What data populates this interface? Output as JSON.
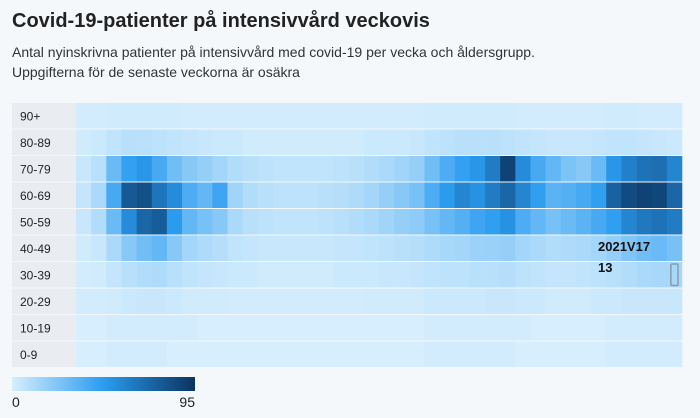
{
  "chart_data": {
    "type": "heatmap",
    "title": "Covid-19-patienter på intensivvård veckovis",
    "subtitle": "Antal nyinskrivna patienter på intensivvård med covid-19 per vecka och åldersgrupp. Uppgifterna för de senaste veckorna är osäkra",
    "x": [
      null,
      null,
      null,
      null,
      null,
      null,
      null,
      null,
      null,
      null,
      null,
      null,
      null,
      null,
      null,
      null,
      null,
      null,
      null,
      null,
      null,
      null,
      null,
      null,
      null,
      null,
      null,
      null,
      null,
      null,
      null,
      null,
      null,
      null,
      null,
      null,
      null,
      null,
      null,
      "2021V17"
    ],
    "categories": [
      "90+",
      "80-89",
      "70-79",
      "60-69",
      "50-59",
      "40-49",
      "30-39",
      "20-29",
      "10-19",
      "0-9"
    ],
    "values": [
      [
        1,
        1,
        2,
        2,
        2,
        2,
        2,
        1,
        1,
        1,
        1,
        1,
        1,
        1,
        1,
        1,
        1,
        1,
        1,
        1,
        1,
        1,
        1,
        2,
        2,
        2,
        2,
        2,
        2,
        1,
        1,
        1,
        1,
        1,
        1,
        2,
        2,
        1,
        1,
        1
      ],
      [
        2,
        3,
        6,
        8,
        8,
        7,
        6,
        5,
        4,
        3,
        3,
        2,
        2,
        2,
        2,
        2,
        2,
        2,
        2,
        3,
        3,
        3,
        4,
        6,
        7,
        8,
        8,
        8,
        7,
        6,
        5,
        4,
        4,
        4,
        5,
        6,
        6,
        5,
        4,
        3
      ],
      [
        4,
        8,
        30,
        45,
        50,
        40,
        28,
        22,
        18,
        14,
        10,
        8,
        7,
        6,
        6,
        6,
        6,
        7,
        8,
        10,
        12,
        15,
        18,
        28,
        38,
        45,
        50,
        62,
        88,
        55,
        40,
        32,
        25,
        22,
        30,
        50,
        60,
        66,
        68,
        58
      ],
      [
        5,
        12,
        40,
        78,
        82,
        65,
        55,
        38,
        32,
        42,
        15,
        10,
        8,
        7,
        7,
        7,
        8,
        9,
        11,
        14,
        18,
        22,
        26,
        38,
        48,
        58,
        52,
        62,
        72,
        58,
        46,
        34,
        36,
        40,
        46,
        74,
        84,
        88,
        86,
        72
      ],
      [
        4,
        10,
        30,
        55,
        72,
        76,
        48,
        32,
        26,
        22,
        12,
        8,
        7,
        6,
        6,
        6,
        7,
        8,
        10,
        12,
        15,
        18,
        20,
        26,
        32,
        36,
        42,
        46,
        52,
        38,
        32,
        26,
        30,
        34,
        40,
        46,
        58,
        64,
        66,
        62
      ],
      [
        2,
        4,
        12,
        22,
        28,
        32,
        22,
        14,
        11,
        9,
        6,
        5,
        4,
        4,
        4,
        4,
        4,
        5,
        5,
        6,
        7,
        8,
        9,
        11,
        13,
        14,
        16,
        17,
        18,
        14,
        12,
        10,
        11,
        12,
        14,
        18,
        24,
        28,
        30,
        26
      ],
      [
        1,
        2,
        5,
        8,
        10,
        11,
        8,
        6,
        5,
        4,
        3,
        3,
        2,
        2,
        2,
        2,
        2,
        3,
        3,
        3,
        4,
        4,
        5,
        6,
        7,
        7,
        8,
        8,
        9,
        7,
        6,
        5,
        5,
        6,
        7,
        8,
        10,
        12,
        13,
        13
      ],
      [
        1,
        1,
        2,
        3,
        4,
        4,
        3,
        2,
        2,
        2,
        1,
        1,
        1,
        1,
        1,
        1,
        1,
        1,
        1,
        2,
        2,
        2,
        2,
        3,
        3,
        3,
        3,
        4,
        4,
        3,
        3,
        2,
        2,
        2,
        3,
        3,
        4,
        4,
        4,
        4
      ],
      [
        0,
        0,
        1,
        1,
        1,
        1,
        1,
        1,
        0,
        0,
        0,
        0,
        0,
        0,
        0,
        0,
        0,
        0,
        0,
        0,
        0,
        0,
        0,
        1,
        1,
        1,
        1,
        1,
        1,
        1,
        0,
        0,
        0,
        0,
        0,
        1,
        1,
        1,
        1,
        1
      ],
      [
        0,
        0,
        1,
        1,
        1,
        1,
        0,
        0,
        0,
        0,
        0,
        0,
        0,
        0,
        0,
        0,
        0,
        0,
        0,
        0,
        0,
        0,
        0,
        1,
        1,
        1,
        1,
        1,
        1,
        0,
        0,
        0,
        0,
        0,
        0,
        1,
        1,
        1,
        1,
        1
      ]
    ],
    "zlim": [
      0,
      95
    ],
    "colors": [
      "#d6eefd",
      "#2b9cf0",
      "#0a3360"
    ]
  }
}
